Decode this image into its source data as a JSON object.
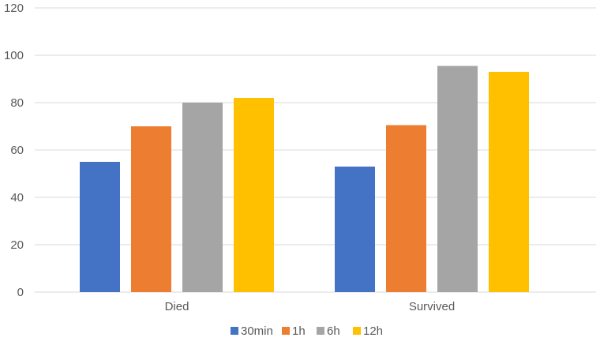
{
  "chart_data": {
    "type": "bar",
    "title": "",
    "xlabel": "",
    "ylabel": "",
    "categories": [
      "Died",
      "Survived"
    ],
    "series": [
      {
        "name": "30min",
        "color": "#4472c4",
        "values": [
          55,
          53
        ]
      },
      {
        "name": "1h",
        "color": "#ed7d31",
        "values": [
          70,
          70.5
        ]
      },
      {
        "name": "6h",
        "color": "#a5a5a5",
        "values": [
          80,
          95.5
        ]
      },
      {
        "name": "12h",
        "color": "#ffc000",
        "values": [
          82,
          93
        ]
      }
    ],
    "ylim": [
      0,
      120
    ],
    "yticks": [
      "0",
      "20",
      "40",
      "60",
      "80",
      "100",
      "120"
    ],
    "grid": true,
    "legend_position": "bottom"
  }
}
